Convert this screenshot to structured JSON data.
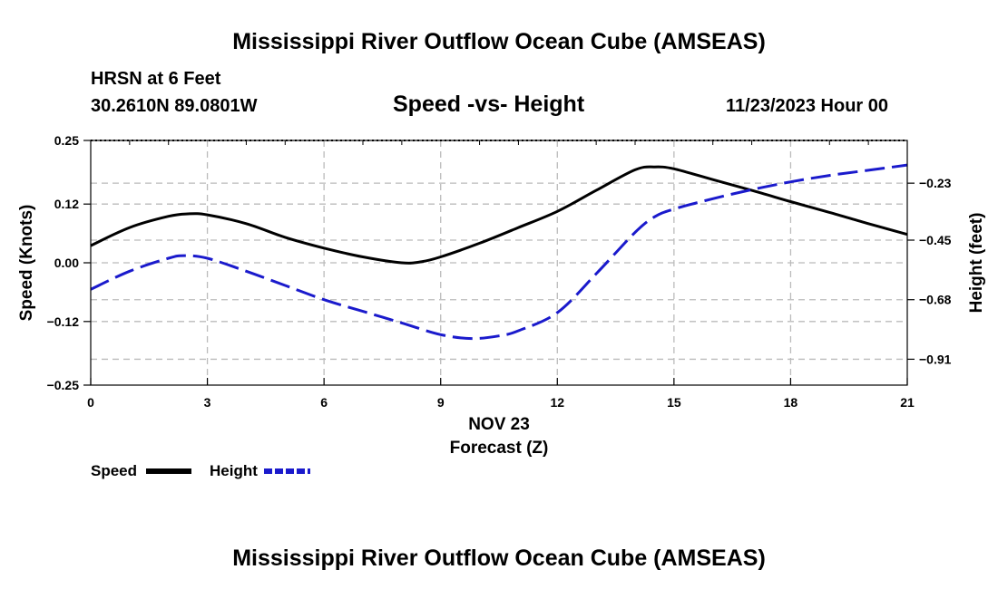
{
  "title_top": "Mississippi River Outflow Ocean Cube (AMSEAS)",
  "title_bottom": "Mississippi River Outflow Ocean Cube (AMSEAS)",
  "station_line": "HRSN at 6 Feet",
  "coords_line": "30.2610N  89.0801W",
  "date_line": "11/23/2023 Hour 00",
  "colors": {
    "speed": "#000000",
    "height": "#1a1acc",
    "grid": "#bbbbbb"
  },
  "chart_data": {
    "type": "line",
    "title": "Speed -vs- Height",
    "xlabel": "Forecast (Z)",
    "x_date_label": "NOV 23",
    "ylabel_left": "Speed (Knots)",
    "ylabel_right": "Height (feet)",
    "xlim": [
      0,
      21
    ],
    "ylim_left": [
      -0.25,
      0.25
    ],
    "ylim_right": [
      -1.01,
      -0.065
    ],
    "x_ticks": [
      "0",
      "3",
      "6",
      "9",
      "12",
      "15",
      "18",
      "21"
    ],
    "y_left_ticks": [
      0.25,
      0.12,
      0.0,
      -0.12,
      -0.25
    ],
    "y_left_tick_labels": [
      "0.25",
      "0.12",
      "0.00",
      "−0.12",
      "−0.25"
    ],
    "y_right_ticks": [
      -0.23,
      -0.45,
      -0.68,
      -0.91
    ],
    "y_right_tick_labels": [
      "−0.23",
      "−0.45",
      "−0.68",
      "−0.91"
    ],
    "legend": [
      "Speed",
      "Height"
    ],
    "series": [
      {
        "name": "Speed",
        "axis": "left",
        "style": "solid",
        "x": [
          0,
          1,
          2,
          2.5,
          3,
          4,
          5,
          6,
          7,
          8,
          8.5,
          9,
          10,
          11,
          12,
          13,
          14,
          14.5,
          15,
          16,
          17,
          18,
          19,
          20,
          21
        ],
        "values": [
          0.035,
          0.072,
          0.095,
          0.1,
          0.098,
          0.08,
          0.052,
          0.03,
          0.012,
          0.0,
          0.002,
          0.012,
          0.04,
          0.072,
          0.105,
          0.148,
          0.19,
          0.196,
          0.192,
          0.17,
          0.148,
          0.125,
          0.103,
          0.08,
          0.058
        ]
      },
      {
        "name": "Height",
        "axis": "right",
        "style": "dashed",
        "x": [
          0,
          1,
          2,
          2.4,
          3,
          4,
          5,
          6,
          7,
          8,
          9,
          9.8,
          10.5,
          11,
          12,
          13,
          14,
          14.5,
          15,
          16,
          17,
          18,
          19,
          20,
          21
        ],
        "values": [
          -0.64,
          -0.57,
          -0.52,
          -0.51,
          -0.52,
          -0.57,
          -0.625,
          -0.68,
          -0.725,
          -0.77,
          -0.815,
          -0.83,
          -0.82,
          -0.8,
          -0.73,
          -0.58,
          -0.42,
          -0.36,
          -0.33,
          -0.29,
          -0.255,
          -0.225,
          -0.2,
          -0.18,
          -0.16
        ]
      }
    ]
  }
}
